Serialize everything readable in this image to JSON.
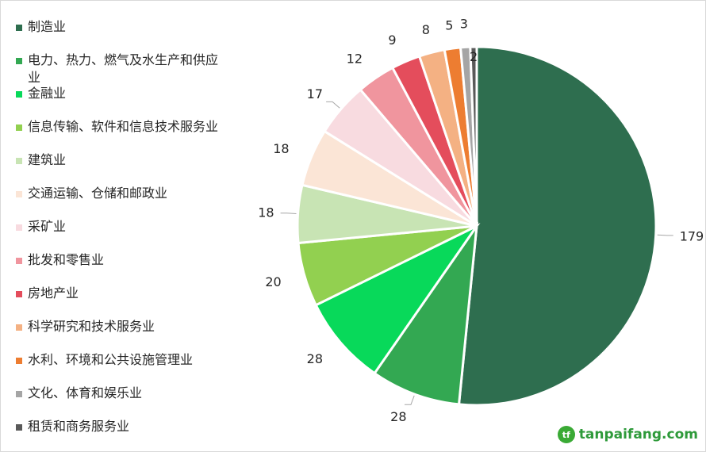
{
  "chart_data": {
    "type": "pie",
    "categories": [
      "制造业",
      "电力、热力、燃气及水生产和供应业",
      "金融业",
      "信息传输、软件和信息技术服务业",
      "建筑业",
      "交通运输、仓储和邮政业",
      "采矿业",
      "批发和零售业",
      "房地产业",
      "科学研究和技术服务业",
      "水利、环境和公共设施管理业",
      "文化、体育和娱乐业",
      "租赁和商务服务业"
    ],
    "values": [
      179,
      28,
      28,
      20,
      18,
      18,
      17,
      12,
      9,
      8,
      5,
      3,
      2
    ],
    "colors": [
      "#2e6e4f",
      "#33a852",
      "#08d95a",
      "#92d050",
      "#c8e4b4",
      "#fbe5d6",
      "#f8dbe0",
      "#f0959e",
      "#e44d5c",
      "#f4b183",
      "#ed7d31",
      "#a5a5a5",
      "#595959"
    ],
    "legend_position": "left"
  },
  "watermark": {
    "logo_text": "tf",
    "text": "tanpaifang.com"
  }
}
